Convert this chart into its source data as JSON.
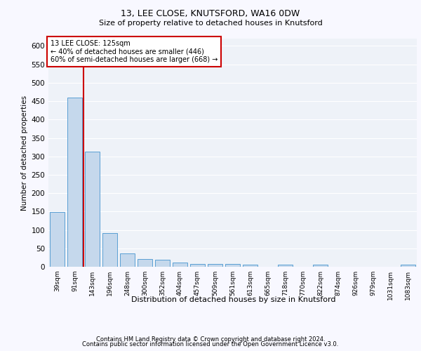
{
  "title1": "13, LEE CLOSE, KNUTSFORD, WA16 0DW",
  "title2": "Size of property relative to detached houses in Knutsford",
  "xlabel": "Distribution of detached houses by size in Knutsford",
  "ylabel": "Number of detached properties",
  "categories": [
    "39sqm",
    "91sqm",
    "143sqm",
    "196sqm",
    "248sqm",
    "300sqm",
    "352sqm",
    "404sqm",
    "457sqm",
    "509sqm",
    "561sqm",
    "613sqm",
    "665sqm",
    "718sqm",
    "770sqm",
    "822sqm",
    "874sqm",
    "926sqm",
    "979sqm",
    "1031sqm",
    "1083sqm"
  ],
  "values": [
    148,
    460,
    312,
    92,
    37,
    21,
    20,
    12,
    7,
    7,
    7,
    5,
    0,
    5,
    0,
    5,
    0,
    0,
    0,
    0,
    5
  ],
  "bar_color": "#c5d8ec",
  "bar_edge_color": "#5a9fd4",
  "vline_color": "#cc0000",
  "box_text_line1": "13 LEE CLOSE: 125sqm",
  "box_text_line2": "← 40% of detached houses are smaller (446)",
  "box_text_line3": "60% of semi-detached houses are larger (668) →",
  "box_color": "#cc0000",
  "footer1": "Contains HM Land Registry data © Crown copyright and database right 2024.",
  "footer2": "Contains public sector information licensed under the Open Government Licence v3.0.",
  "bg_color": "#eef2f8",
  "grid_color": "#ffffff",
  "fig_bg": "#f8f8ff",
  "ylim": [
    0,
    620
  ]
}
